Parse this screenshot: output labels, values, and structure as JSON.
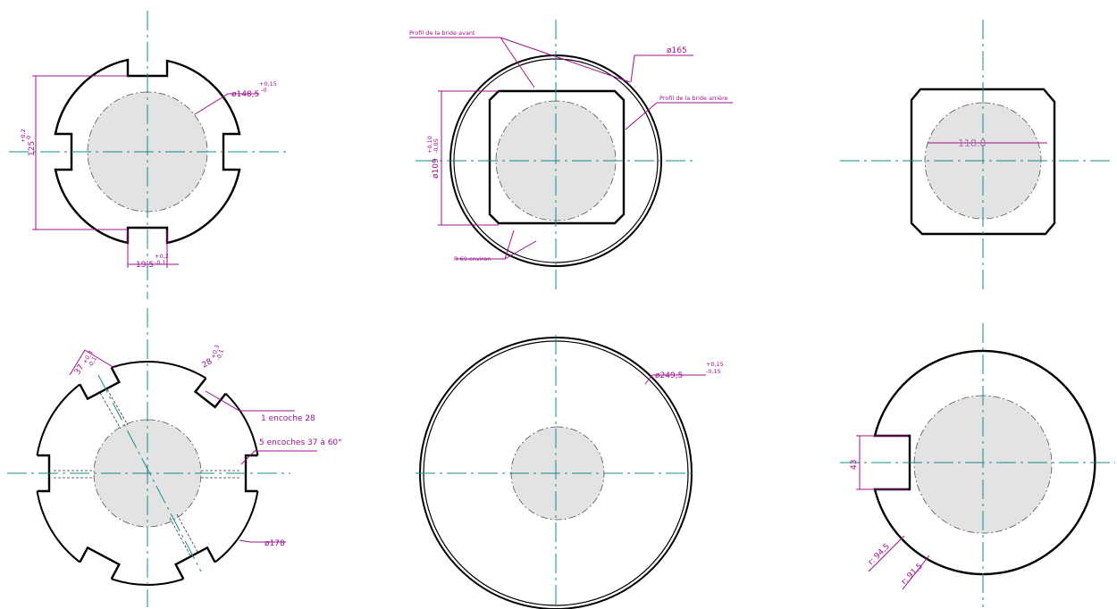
{
  "views": [
    {
      "diameter": "ø148,5",
      "diameter_tol_upper": "+0,15",
      "diameter_tol_lower": "-0",
      "height": "125",
      "height_tol_upper": "+0,2",
      "height_tol_lower": "0",
      "slot_width": "19,5",
      "slot_tol_upper": "+0,2",
      "slot_tol_lower": "-0,1"
    },
    {
      "front_profile": "Profil de la bride avant",
      "diameter": "ø165",
      "rear_profile": "Profil de la bride arrière",
      "inner": "ø109",
      "inner_tol_upper": "+0,10",
      "inner_tol_lower": "-0,05",
      "radius": "R 69 environ"
    },
    {
      "width": "118.8"
    },
    {
      "slot_left": "37",
      "slot_left_tol_upper": "+0,3",
      "slot_left_tol_lower": "-0,1",
      "slot_right": "28",
      "slot_right_tol_upper": "+0,3",
      "slot_right_tol_lower": "-0,1",
      "note_one": "1 encoche 28",
      "note_five": "5 encoches 37 à 60°",
      "diameter": "ø178"
    },
    {
      "diameter": "ø249,5",
      "tol_upper": "+0,15",
      "tol_lower": "-0,15"
    },
    {
      "slot": "43",
      "radius_outer": "r: 94,5",
      "radius_inner": "r: 91,5"
    }
  ]
}
